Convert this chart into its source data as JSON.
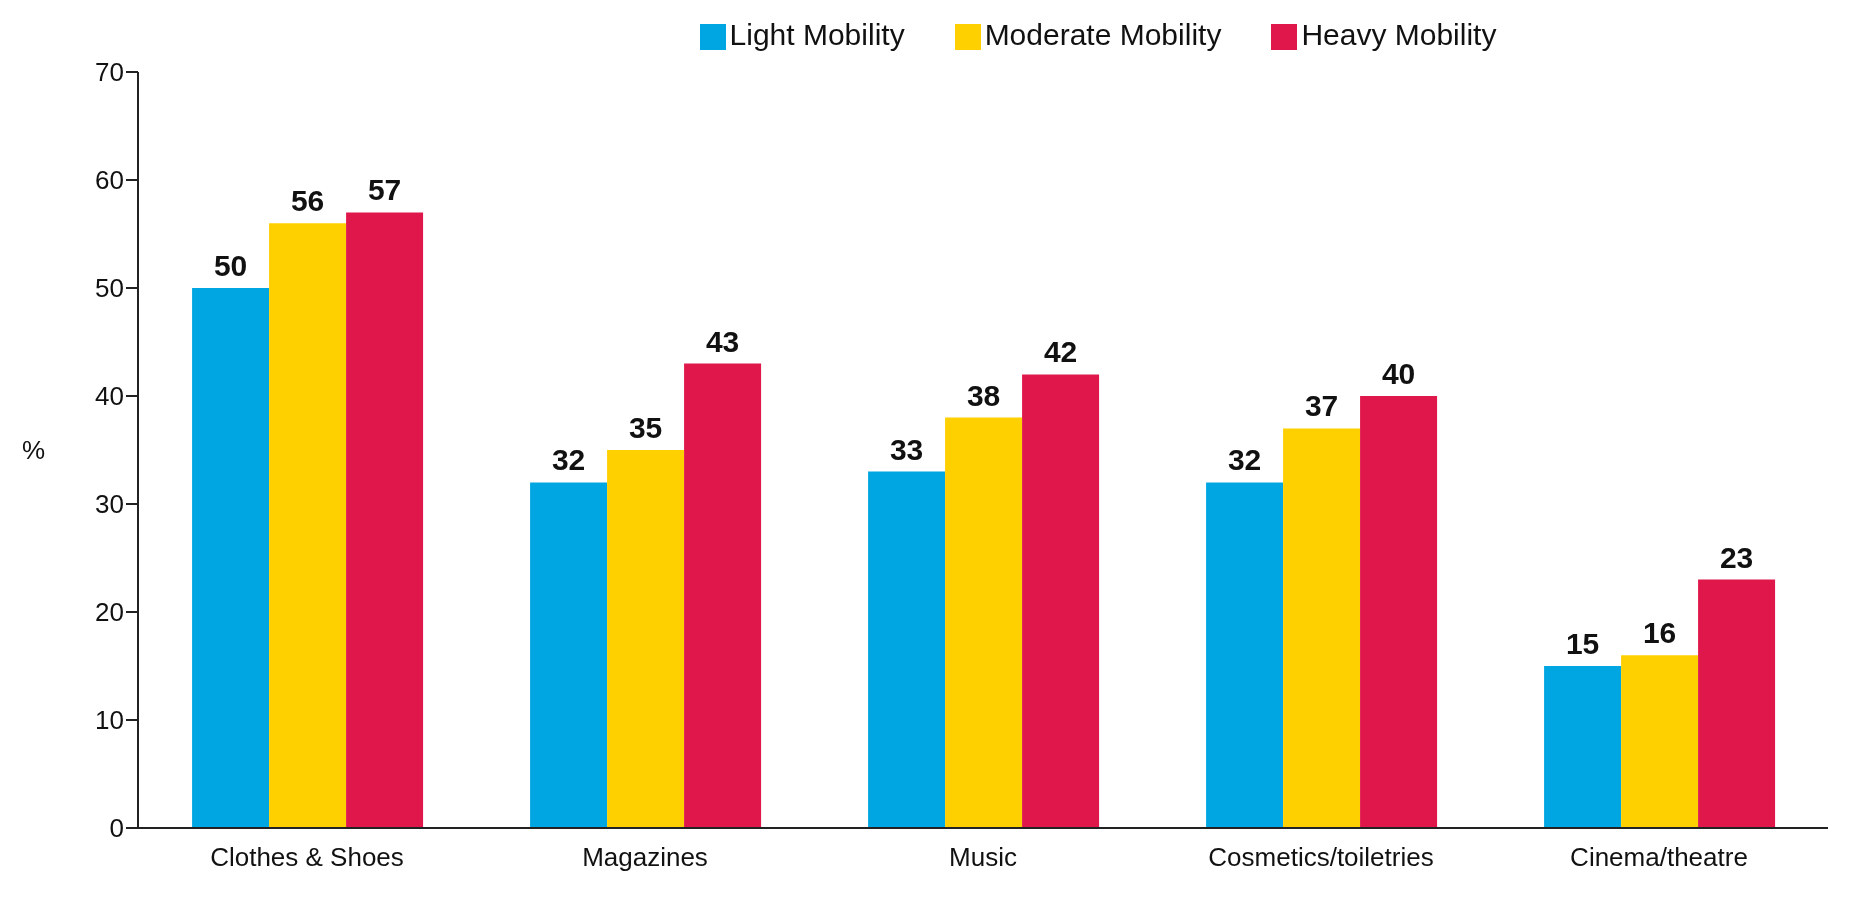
{
  "chart_data": {
    "type": "bar",
    "ylabel": "%",
    "categories": [
      "Clothes & Shoes",
      "Magazines",
      "Music",
      "Cosmetics/toiletries",
      "Cinema/theatre"
    ],
    "series": [
      {
        "name": "Light Mobility",
        "color": "#00a6e2",
        "values": [
          50,
          32,
          33,
          32,
          15
        ]
      },
      {
        "name": "Moderate Mobility",
        "color": "#ffd000",
        "values": [
          56,
          35,
          38,
          37,
          16
        ]
      },
      {
        "name": "Heavy Mobility",
        "color": "#e0174a",
        "values": [
          57,
          43,
          42,
          40,
          23
        ]
      }
    ],
    "ylim": [
      0,
      70
    ],
    "yticks": [
      0,
      10,
      20,
      30,
      40,
      50,
      60,
      70
    ],
    "data_labels": true,
    "legend": "top",
    "grid": false
  }
}
